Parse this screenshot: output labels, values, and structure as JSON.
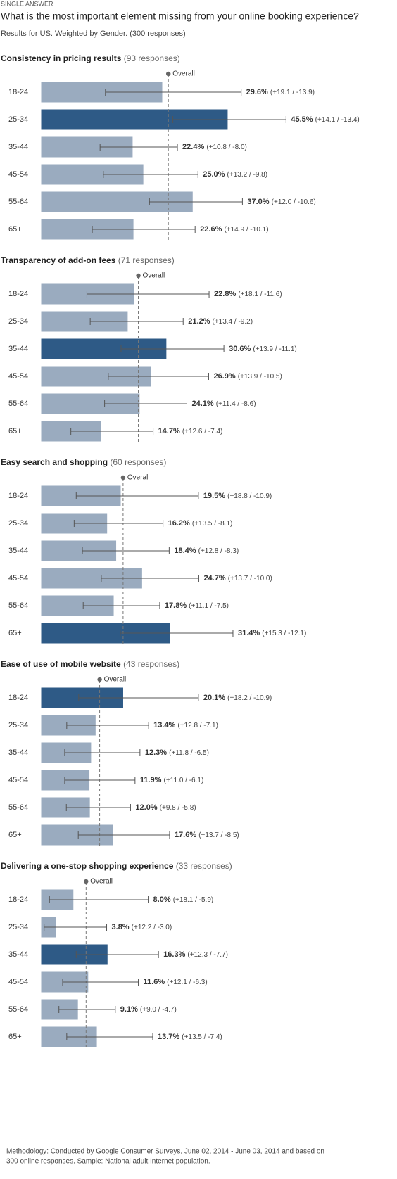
{
  "header": {
    "kicker": "SINGLE ANSWER",
    "title": "What is the most important element missing from your online booking experience?",
    "subtitle": "Results for US. Weighted by Gender. (300 responses)"
  },
  "footer": {
    "lines": [
      "Methodology: Conducted by Google Consumer Surveys, June 02, 2014 - June 03, 2014 and based on",
      "300 online responses. Sample: National adult Internet population."
    ]
  },
  "chart_data": [
    {
      "type": "bar",
      "title": "Consistency in pricing results",
      "subtitle": "(93 responses)",
      "overall_label": "Overall",
      "overall": 31,
      "categories": [
        "18-24",
        "25-34",
        "35-44",
        "45-54",
        "55-64",
        "65+"
      ],
      "values": [
        29.6,
        45.5,
        22.4,
        25.0,
        37.0,
        22.6
      ],
      "value_labels": [
        "29.6%",
        "45.5%",
        "22.4%",
        "25.0%",
        "37.0%",
        "22.6%"
      ],
      "errors_plus": [
        19.1,
        14.1,
        10.8,
        13.2,
        12.0,
        14.9
      ],
      "errors_minus": [
        13.9,
        13.4,
        8.0,
        9.8,
        10.6,
        10.1
      ],
      "error_labels": [
        "(+19.1 / -13.9)",
        "(+14.1 / -13.4)",
        "(+10.8 / -8.0)",
        "(+13.2 / -9.8)",
        "(+12.0 / -10.6)",
        "(+14.9 / -10.1)"
      ],
      "colors": [
        "#9aabbf",
        "#2e5a86",
        "#9aabbf",
        "#9aabbf",
        "#9aabbf",
        "#9aabbf"
      ],
      "xlim": [
        0,
        80
      ]
    },
    {
      "type": "bar",
      "title": "Transparency of add-on fees",
      "subtitle": "(71 responses)",
      "overall_label": "Overall",
      "overall": 23.7,
      "categories": [
        "18-24",
        "25-34",
        "35-44",
        "45-54",
        "55-64",
        "65+"
      ],
      "values": [
        22.8,
        21.2,
        30.6,
        26.9,
        24.1,
        14.7
      ],
      "value_labels": [
        "22.8%",
        "21.2%",
        "30.6%",
        "26.9%",
        "24.1%",
        "14.7%"
      ],
      "errors_plus": [
        18.1,
        13.4,
        13.9,
        13.9,
        11.4,
        12.6
      ],
      "errors_minus": [
        11.6,
        9.2,
        11.1,
        10.5,
        8.6,
        7.4
      ],
      "error_labels": [
        "(+18.1 / -11.6)",
        "(+13.4 / -9.2)",
        "(+13.9 / -11.1)",
        "(+13.9 / -10.5)",
        "(+11.4 / -8.6)",
        "(+12.6 / -7.4)"
      ],
      "colors": [
        "#9aabbf",
        "#9aabbf",
        "#2e5a86",
        "#9aabbf",
        "#9aabbf",
        "#9aabbf"
      ],
      "xlim": [
        0,
        80
      ]
    },
    {
      "type": "bar",
      "title": "Easy search and shopping",
      "subtitle": "(60 responses)",
      "overall_label": "Overall",
      "overall": 20,
      "categories": [
        "18-24",
        "25-34",
        "35-44",
        "45-54",
        "55-64",
        "65+"
      ],
      "values": [
        19.5,
        16.2,
        18.4,
        24.7,
        17.8,
        31.4
      ],
      "value_labels": [
        "19.5%",
        "16.2%",
        "18.4%",
        "24.7%",
        "17.8%",
        "31.4%"
      ],
      "errors_plus": [
        18.8,
        13.5,
        12.8,
        13.7,
        11.1,
        15.3
      ],
      "errors_minus": [
        10.9,
        8.1,
        8.3,
        10.0,
        7.5,
        12.1
      ],
      "error_labels": [
        "(+18.8 / -10.9)",
        "(+13.5 / -8.1)",
        "(+12.8 / -8.3)",
        "(+13.7 / -10.0)",
        "(+11.1 / -7.5)",
        "(+15.3 / -12.1)"
      ],
      "colors": [
        "#9aabbf",
        "#9aabbf",
        "#9aabbf",
        "#9aabbf",
        "#9aabbf",
        "#2e5a86"
      ],
      "xlim": [
        0,
        80
      ]
    },
    {
      "type": "bar",
      "title": "Ease of use of mobile website",
      "subtitle": "(43 responses)",
      "overall_label": "Overall",
      "overall": 14.3,
      "categories": [
        "18-24",
        "25-34",
        "35-44",
        "45-54",
        "55-64",
        "65+"
      ],
      "values": [
        20.1,
        13.4,
        12.3,
        11.9,
        12.0,
        17.6
      ],
      "value_labels": [
        "20.1%",
        "13.4%",
        "12.3%",
        "11.9%",
        "12.0%",
        "17.6%"
      ],
      "errors_plus": [
        18.2,
        12.8,
        11.8,
        11.0,
        9.8,
        13.7
      ],
      "errors_minus": [
        10.9,
        7.1,
        6.5,
        6.1,
        5.8,
        8.5
      ],
      "error_labels": [
        "(+18.2 / -10.9)",
        "(+12.8 / -7.1)",
        "(+11.8 / -6.5)",
        "(+11.0 / -6.1)",
        "(+9.8 / -5.8)",
        "(+13.7 / -8.5)"
      ],
      "colors": [
        "#2e5a86",
        "#9aabbf",
        "#9aabbf",
        "#9aabbf",
        "#9aabbf",
        "#9aabbf"
      ],
      "xlim": [
        0,
        80
      ]
    },
    {
      "type": "bar",
      "title": "Delivering a one-stop shopping experience",
      "subtitle": "(33 responses)",
      "overall_label": "Overall",
      "overall": 11,
      "categories": [
        "18-24",
        "25-34",
        "35-44",
        "45-54",
        "55-64",
        "65+"
      ],
      "values": [
        8.0,
        3.8,
        16.3,
        11.6,
        9.1,
        13.7
      ],
      "value_labels": [
        "8.0%",
        "3.8%",
        "16.3%",
        "11.6%",
        "9.1%",
        "13.7%"
      ],
      "errors_plus": [
        18.1,
        12.2,
        12.3,
        12.1,
        9.0,
        13.5
      ],
      "errors_minus": [
        5.9,
        3.0,
        7.7,
        6.3,
        4.7,
        7.4
      ],
      "error_labels": [
        "(+18.1 / -5.9)",
        "(+12.2 / -3.0)",
        "(+12.3 / -7.7)",
        "(+12.1 / -6.3)",
        "(+9.0 / -4.7)",
        "(+13.5 / -7.4)"
      ],
      "colors": [
        "#9aabbf",
        "#9aabbf",
        "#2e5a86",
        "#9aabbf",
        "#9aabbf",
        "#9aabbf"
      ],
      "xlim": [
        0,
        80
      ]
    }
  ]
}
